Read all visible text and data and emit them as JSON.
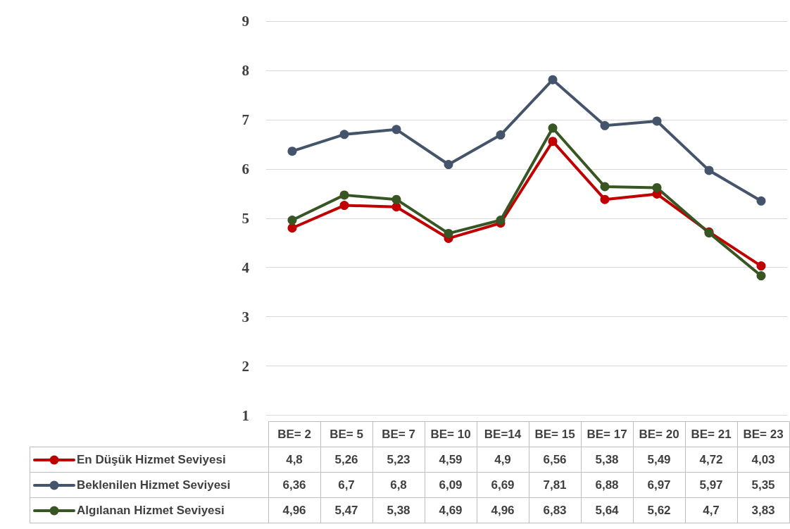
{
  "chart_data": {
    "type": "line",
    "categories": [
      "BE= 2",
      "BE= 5",
      "BE= 7",
      "BE= 10",
      "BE=14",
      "BE= 15",
      "BE= 17",
      "BE= 20",
      "BE= 21",
      "BE= 23"
    ],
    "series": [
      {
        "name": "En Düşük Hizmet Seviyesi",
        "color": "#c00000",
        "values": [
          4.8,
          5.26,
          5.23,
          4.59,
          4.9,
          6.56,
          5.38,
          5.49,
          4.72,
          4.03
        ],
        "value_labels": [
          "4,8",
          "5,26",
          "5,23",
          "4,59",
          "4,9",
          "6,56",
          "5,38",
          "5,49",
          "4,72",
          "4,03"
        ]
      },
      {
        "name": "Beklenilen Hizmet Seviyesi",
        "color": "#44546a",
        "values": [
          6.36,
          6.7,
          6.8,
          6.09,
          6.69,
          7.81,
          6.88,
          6.97,
          5.97,
          5.35
        ],
        "value_labels": [
          "6,36",
          "6,7",
          "6,8",
          "6,09",
          "6,69",
          "7,81",
          "6,88",
          "6,97",
          "5,97",
          "5,35"
        ]
      },
      {
        "name": "Algılanan Hizmet Seviyesi",
        "color": "#375623",
        "values": [
          4.96,
          5.47,
          5.38,
          4.69,
          4.96,
          6.83,
          5.64,
          5.62,
          4.7,
          3.83
        ],
        "value_labels": [
          "4,96",
          "5,47",
          "5,38",
          "4,69",
          "4,96",
          "6,83",
          "5,64",
          "5,62",
          "4,7",
          "3,83"
        ]
      }
    ],
    "ylim": [
      1,
      9
    ],
    "yticks": [
      1,
      2,
      3,
      4,
      5,
      6,
      7,
      8,
      9
    ],
    "grid": "y",
    "legend": "bottom",
    "marker": "circle",
    "line_style": "solid"
  }
}
